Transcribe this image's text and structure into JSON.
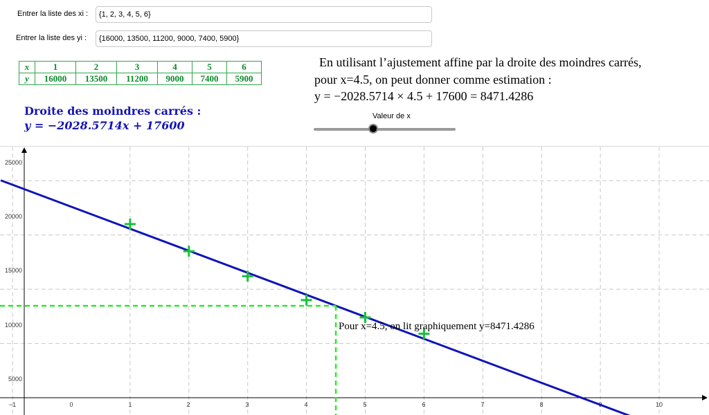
{
  "inputs": {
    "xi_label": "Entrer la liste des xi :",
    "xi_value": "{1, 2, 3, 4, 5, 6}",
    "yi_label": "Entrer la liste des yi :",
    "yi_value": "{16000, 13500, 11200, 9000, 7400, 5900}"
  },
  "table": {
    "x_header": "x",
    "y_header": "y",
    "x_values": [
      "1",
      "2",
      "3",
      "4",
      "5",
      "6"
    ],
    "y_values": [
      "16000",
      "13500",
      "11200",
      "9000",
      "7400",
      "5900"
    ]
  },
  "regression": {
    "title": "Droite des moindres carrés :",
    "equation": "y = −2028.5714x + 17600"
  },
  "estimation": {
    "line1": "En utilisant l’ajustement affine par la droite des moindres carrés,",
    "line2": "pour x=4.5, on peut donner comme estimation :",
    "line3": "y = −2028.5714 × 4.5 + 17600 = 8471.4286"
  },
  "slider": {
    "label": "Valeur de x",
    "value": 4.5,
    "min": 0,
    "max": 10
  },
  "colors": {
    "line": "#0e14b8",
    "points": "#17c23a",
    "dashed": "#22ee22",
    "table": "#0a8a2a",
    "regression_text": "#1515b4"
  },
  "graph": {
    "annotation": "Pour x=4.5, on lit graphiquement y=8471.4286",
    "x_ticks": [
      "−1",
      "0",
      "1",
      "2",
      "3",
      "4",
      "5",
      "6",
      "7",
      "8",
      "9",
      "10"
    ],
    "y_ticks": [
      "5000",
      "10000",
      "15000",
      "20000",
      "25000"
    ]
  },
  "chart_data": {
    "type": "scatter",
    "points": [
      {
        "x": 1,
        "y": 16000
      },
      {
        "x": 2,
        "y": 13500
      },
      {
        "x": 3,
        "y": 11200
      },
      {
        "x": 4,
        "y": 9000
      },
      {
        "x": 5,
        "y": 7400
      },
      {
        "x": 6,
        "y": 5900
      }
    ],
    "line": {
      "slope": -2028.5714,
      "intercept": 17600
    },
    "highlight": {
      "x": 4.5,
      "y": 8471.4286
    },
    "xlim": [
      -1.2,
      10.9
    ],
    "ylim": [
      -1500,
      26000
    ],
    "grid": true
  }
}
